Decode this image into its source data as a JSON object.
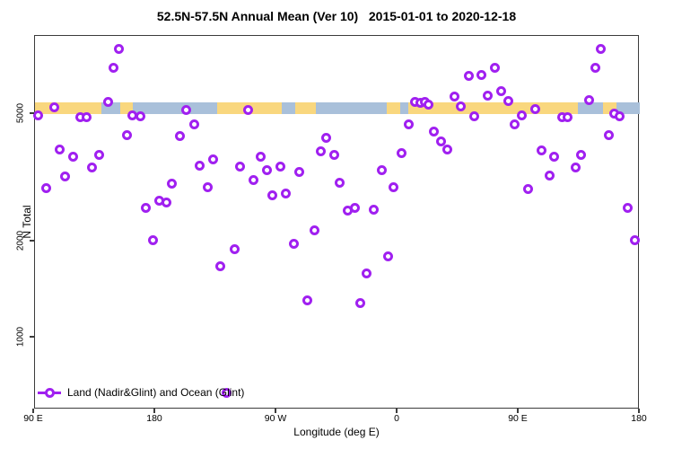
{
  "title": "52.5N-57.5N Annual Mean (Ver 10)   2015-01-01 to 2020-12-18",
  "legend": {
    "label": "Land (Nadir&Glint) and Ocean (Glint)"
  },
  "colors": {
    "marker": "#A020F0",
    "land_band": "#F9D77E",
    "ocean_band": "#A9C0DA",
    "axis": "#3c3c3c"
  },
  "chart_data": {
    "type": "scatter",
    "title": "52.5N-57.5N Annual Mean (Ver 10)   2015-01-01 to 2020-12-18",
    "xlabel": "Longitude (deg E)",
    "ylabel": "N Total",
    "y_scale": "log",
    "ylim": [
      600,
      9500
    ],
    "y_ticks": [
      1000,
      2000,
      5000
    ],
    "x_axis_span_deg": 450,
    "x_ticks": [
      {
        "deg": 0,
        "label": "90 E"
      },
      {
        "deg": 90,
        "label": "180"
      },
      {
        "deg": 180,
        "label": "90 W"
      },
      {
        "deg": 270,
        "label": "0"
      },
      {
        "deg": 360,
        "label": "90 E"
      },
      {
        "deg": 450,
        "label": "180"
      }
    ],
    "legend_entries": [
      "Land (Nadir&Glint) and Ocean (Glint)"
    ],
    "legend_position": "bottom-left",
    "grid": false,
    "surface_band": {
      "description": "horizontal land/ocean strip drawn near N=5200",
      "segments": [
        {
          "from_deg": 0,
          "to_deg": 50,
          "type": "land"
        },
        {
          "from_deg": 50,
          "to_deg": 64,
          "type": "ocean"
        },
        {
          "from_deg": 64,
          "to_deg": 73.3,
          "type": "land"
        },
        {
          "from_deg": 73.3,
          "to_deg": 136,
          "type": "ocean"
        },
        {
          "from_deg": 136,
          "to_deg": 184,
          "type": "land"
        },
        {
          "from_deg": 184,
          "to_deg": 194,
          "type": "ocean"
        },
        {
          "from_deg": 194,
          "to_deg": 209.3,
          "type": "land"
        },
        {
          "from_deg": 209.3,
          "to_deg": 262,
          "type": "ocean"
        },
        {
          "from_deg": 262,
          "to_deg": 272,
          "type": "land"
        },
        {
          "from_deg": 272,
          "to_deg": 278,
          "type": "ocean"
        },
        {
          "from_deg": 278,
          "to_deg": 404,
          "type": "land"
        },
        {
          "from_deg": 404,
          "to_deg": 422.7,
          "type": "ocean"
        },
        {
          "from_deg": 422.7,
          "to_deg": 432.7,
          "type": "land"
        },
        {
          "from_deg": 432.7,
          "to_deg": 450,
          "type": "ocean"
        }
      ]
    },
    "points": [
      [
        3.3,
        4970
      ],
      [
        9.3,
        2930
      ],
      [
        14.7,
        5240
      ],
      [
        18.7,
        3870
      ],
      [
        23.3,
        3200
      ],
      [
        28.7,
        3690
      ],
      [
        34.0,
        4880
      ],
      [
        39.3,
        4880
      ],
      [
        43.3,
        3400
      ],
      [
        48.0,
        3720
      ],
      [
        54.7,
        5450
      ],
      [
        58.7,
        7000
      ],
      [
        63.3,
        7980
      ],
      [
        68.7,
        4290
      ],
      [
        72.7,
        4970
      ],
      [
        78.7,
        4940
      ],
      [
        82.7,
        2540
      ],
      [
        88.0,
        2020
      ],
      [
        93.3,
        2690
      ],
      [
        98.0,
        2640
      ],
      [
        102.0,
        3040
      ],
      [
        108.0,
        4260
      ],
      [
        112.7,
        5140
      ],
      [
        118.7,
        4660
      ],
      [
        123.3,
        3440
      ],
      [
        128.7,
        2960
      ],
      [
        133.3,
        3620
      ],
      [
        138.0,
        1670
      ],
      [
        143.3,
        670
      ],
      [
        148.7,
        1890
      ],
      [
        153.3,
        3420
      ],
      [
        158.7,
        5140
      ],
      [
        163.3,
        3120
      ],
      [
        168.0,
        3670
      ],
      [
        172.7,
        3350
      ],
      [
        177.3,
        2780
      ],
      [
        182.7,
        3420
      ],
      [
        187.3,
        2830
      ],
      [
        193.3,
        1970
      ],
      [
        197.3,
        3290
      ],
      [
        202.7,
        1310
      ],
      [
        208.0,
        2170
      ],
      [
        213.3,
        3820
      ],
      [
        217.3,
        4230
      ],
      [
        222.7,
        3720
      ],
      [
        227.3,
        3060
      ],
      [
        232.7,
        2490
      ],
      [
        238.0,
        2540
      ],
      [
        242.0,
        1280
      ],
      [
        247.3,
        1590
      ],
      [
        252.0,
        2510
      ],
      [
        258.0,
        3350
      ],
      [
        262.7,
        1800
      ],
      [
        266.7,
        2960
      ],
      [
        272.7,
        3790
      ],
      [
        278.0,
        4660
      ],
      [
        282.7,
        5450
      ],
      [
        286.7,
        5410
      ],
      [
        290.0,
        5450
      ],
      [
        292.7,
        5370
      ],
      [
        297.3,
        4400
      ],
      [
        302.0,
        4100
      ],
      [
        306.7,
        3870
      ],
      [
        312.0,
        5660
      ],
      [
        316.7,
        5300
      ],
      [
        322.7,
        6570
      ],
      [
        327.3,
        4940
      ],
      [
        332.0,
        6650
      ],
      [
        336.7,
        5730
      ],
      [
        342.0,
        7000
      ],
      [
        347.3,
        5890
      ],
      [
        352.0,
        5480
      ],
      [
        357.3,
        4660
      ],
      [
        362.0,
        4970
      ],
      [
        367.3,
        2910
      ],
      [
        372.0,
        5200
      ],
      [
        376.7,
        3840
      ],
      [
        382.7,
        3220
      ],
      [
        386.0,
        3690
      ],
      [
        392.0,
        4880
      ],
      [
        396.0,
        4880
      ],
      [
        402.0,
        3400
      ],
      [
        406.0,
        3720
      ],
      [
        412.0,
        5520
      ],
      [
        416.7,
        7000
      ],
      [
        421.3,
        7980
      ],
      [
        426.7,
        4310
      ],
      [
        430.7,
        5010
      ],
      [
        435.3,
        4940
      ],
      [
        440.7,
        2540
      ],
      [
        446.0,
        2020
      ]
    ]
  }
}
